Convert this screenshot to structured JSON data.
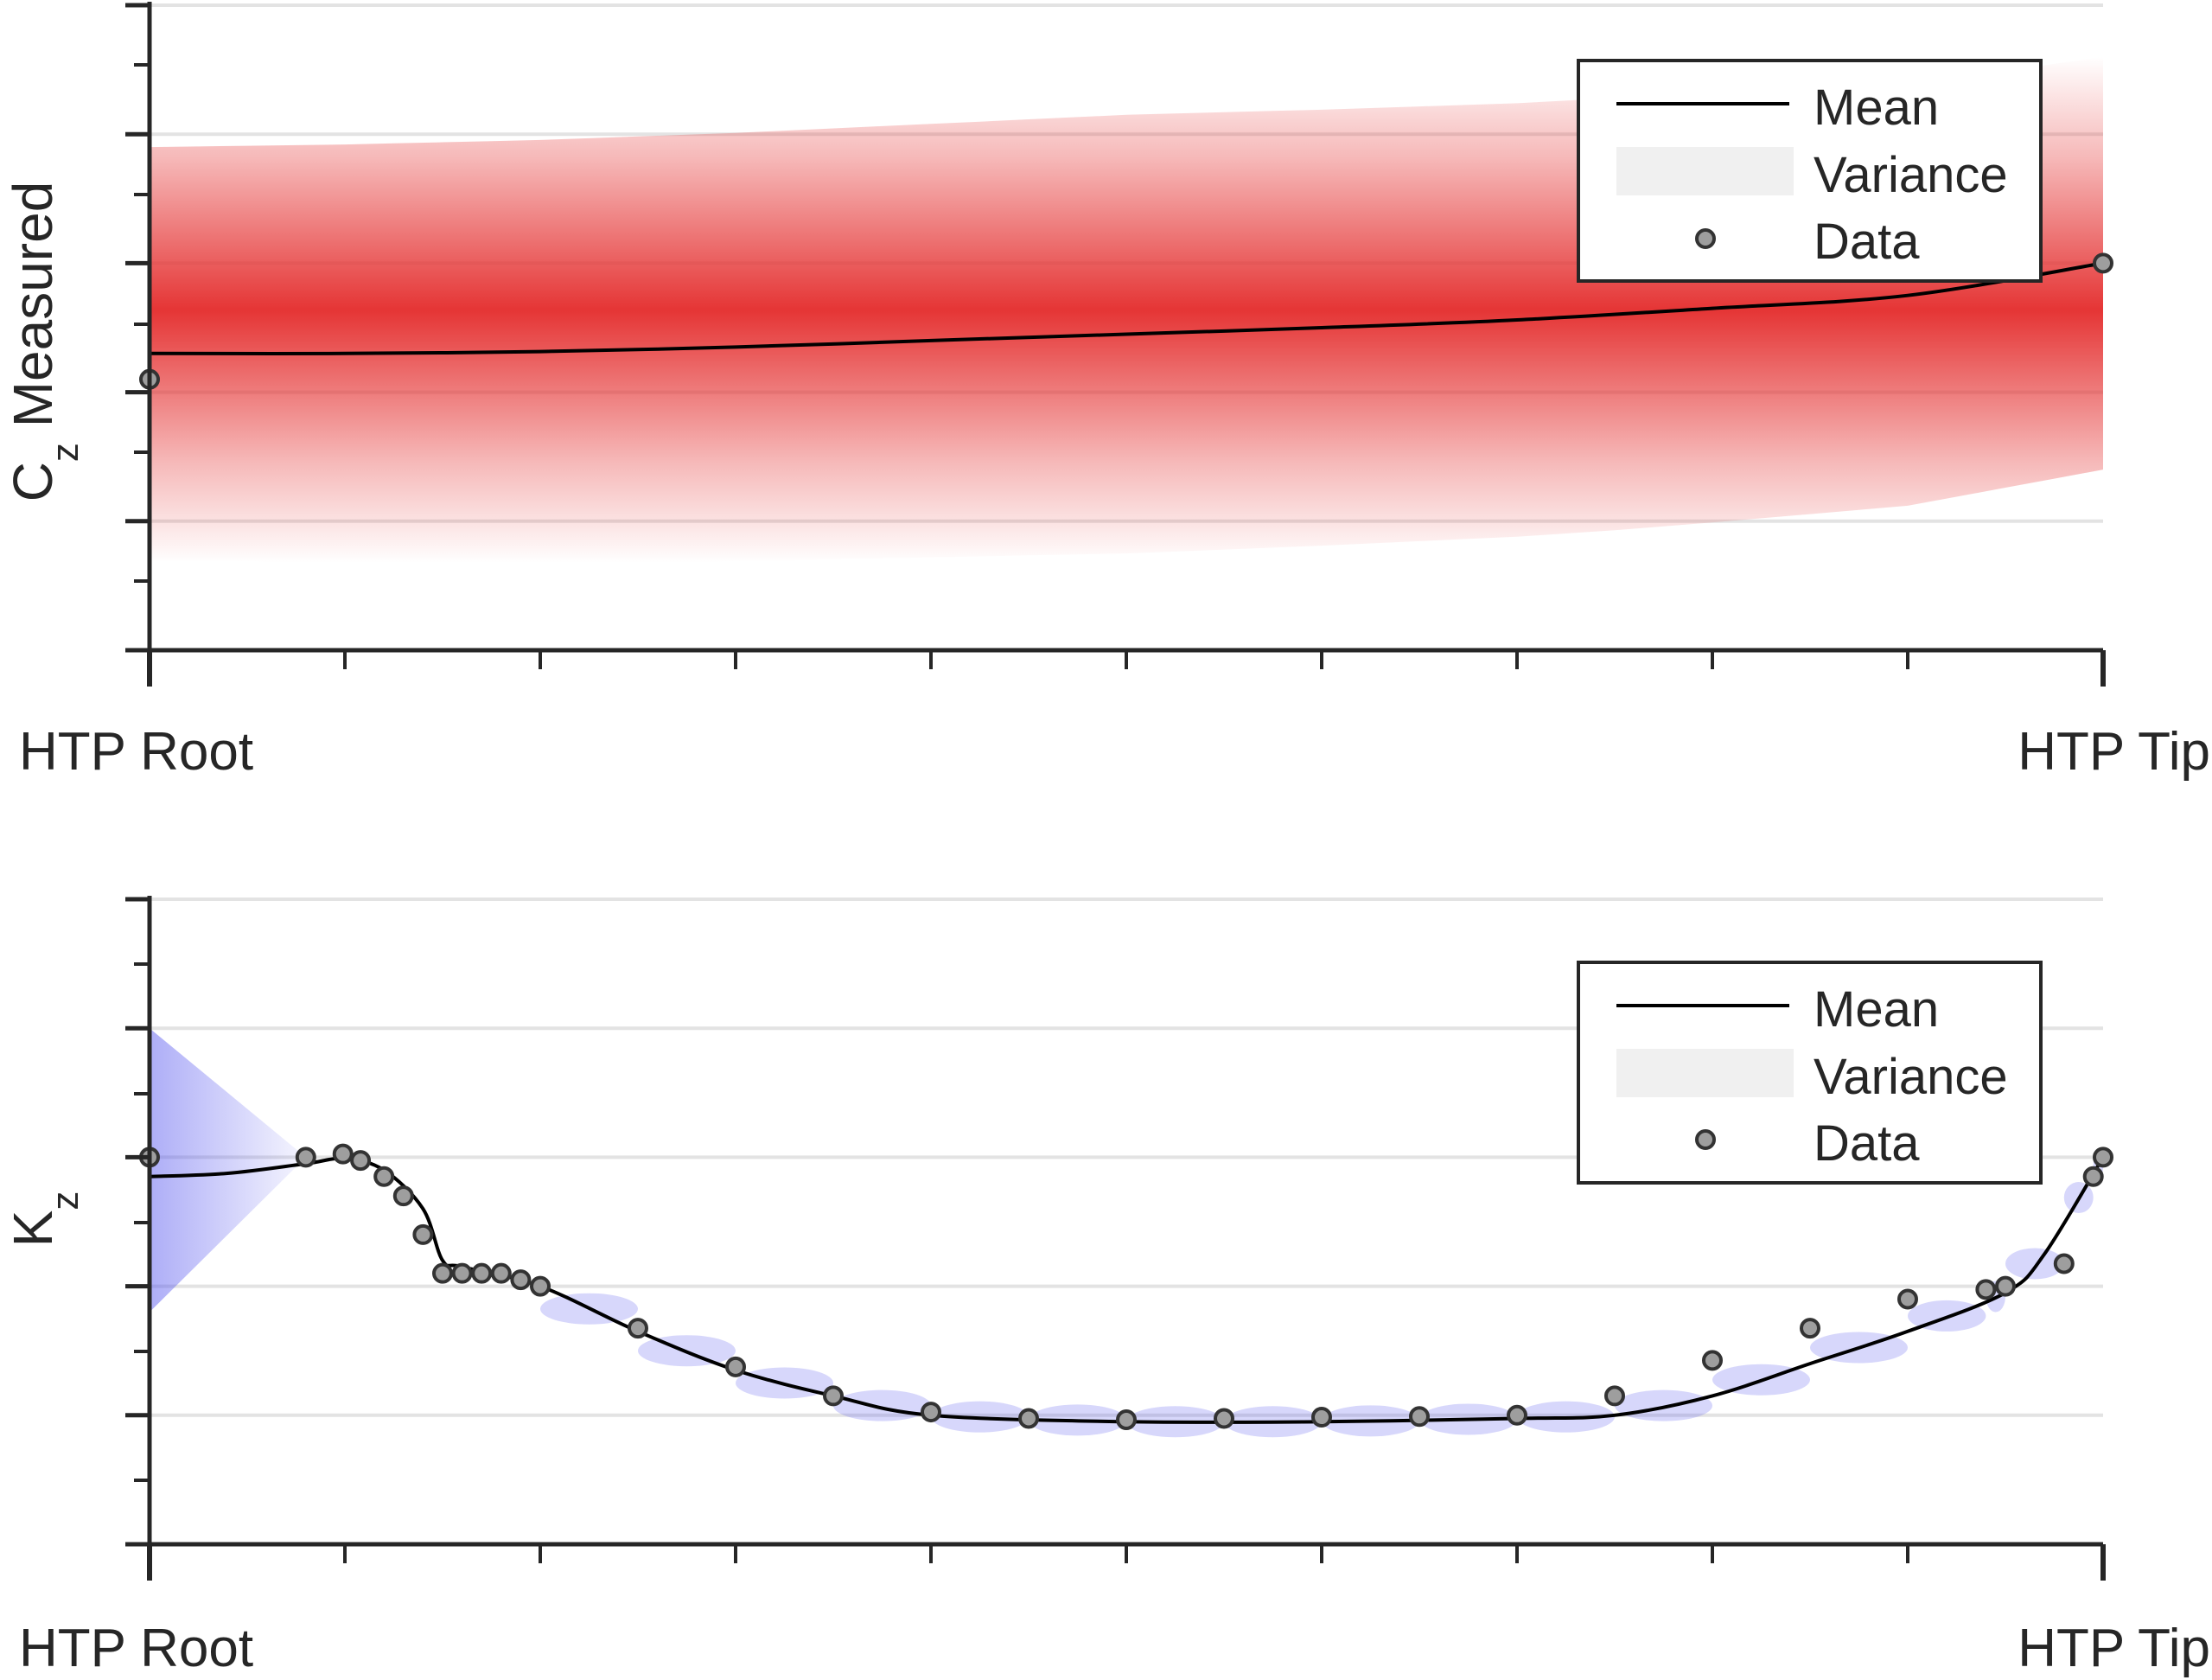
{
  "chart_data": [
    {
      "type": "line",
      "ylabel_main": "C",
      "ylabel_sub": "z",
      "ylabel_rest": " Measured",
      "x_tick_labels": [
        "HTP Root",
        "HTP Tip"
      ],
      "xlim": [
        0,
        1
      ],
      "ylim": [
        0,
        10
      ],
      "grid": true,
      "band_color": "#e53535",
      "legend": {
        "placement": "top-right",
        "entries": [
          "Mean",
          "Variance",
          "Data"
        ]
      },
      "mean": {
        "x": [
          0,
          0.1,
          0.2,
          0.3,
          0.4,
          0.5,
          0.6,
          0.7,
          0.8,
          0.9,
          1.0
        ],
        "y": [
          4.6,
          4.6,
          4.63,
          4.7,
          4.8,
          4.9,
          5.0,
          5.12,
          5.3,
          5.5,
          6.0
        ]
      },
      "band_half_width": {
        "x": [
          0,
          0.25,
          0.5,
          0.75,
          1.0
        ],
        "y": [
          3.2,
          3.3,
          3.4,
          3.35,
          3.2
        ]
      },
      "data_points": {
        "x": [
          0,
          1.0
        ],
        "y": [
          4.2,
          6.0
        ]
      }
    },
    {
      "type": "line",
      "ylabel_main": "K",
      "ylabel_sub": "z",
      "x_tick_labels": [
        "HTP Root",
        "HTP Tip"
      ],
      "xlim": [
        0,
        1
      ],
      "ylim": [
        0,
        10
      ],
      "grid": true,
      "band_color": "#4a4aee",
      "legend": {
        "placement": "top-right",
        "entries": [
          "Mean",
          "Variance",
          "Data"
        ]
      },
      "mean": {
        "x": [
          0,
          0.04,
          0.08,
          0.1,
          0.12,
          0.14,
          0.15,
          0.16,
          0.2,
          0.25,
          0.3,
          0.35,
          0.4,
          0.5,
          0.6,
          0.7,
          0.75,
          0.8,
          0.85,
          0.9,
          0.95,
          0.97,
          1.0
        ],
        "y": [
          5.7,
          5.75,
          5.9,
          5.98,
          5.8,
          5.2,
          4.4,
          4.3,
          4.0,
          3.3,
          2.7,
          2.3,
          2.0,
          1.9,
          1.9,
          1.95,
          2.0,
          2.3,
          2.8,
          3.3,
          3.9,
          4.5,
          6.0
        ]
      },
      "data_points": {
        "x": [
          0,
          0.08,
          0.099,
          0.108,
          0.12,
          0.13,
          0.14,
          0.15,
          0.16,
          0.17,
          0.18,
          0.19,
          0.2,
          0.25,
          0.3,
          0.35,
          0.4,
          0.45,
          0.5,
          0.55,
          0.6,
          0.65,
          0.7,
          0.75,
          0.8,
          0.85,
          0.9,
          0.94,
          0.95,
          0.98,
          0.995,
          1.0
        ],
        "y": [
          6.0,
          6.0,
          6.05,
          5.95,
          5.7,
          5.4,
          4.8,
          4.2,
          4.2,
          4.2,
          4.2,
          4.1,
          4.0,
          3.35,
          2.75,
          2.3,
          2.05,
          1.95,
          1.93,
          1.95,
          1.97,
          1.98,
          2.0,
          2.3,
          2.85,
          3.35,
          3.8,
          3.95,
          4.0,
          4.35,
          5.7,
          6.0
        ]
      }
    }
  ]
}
